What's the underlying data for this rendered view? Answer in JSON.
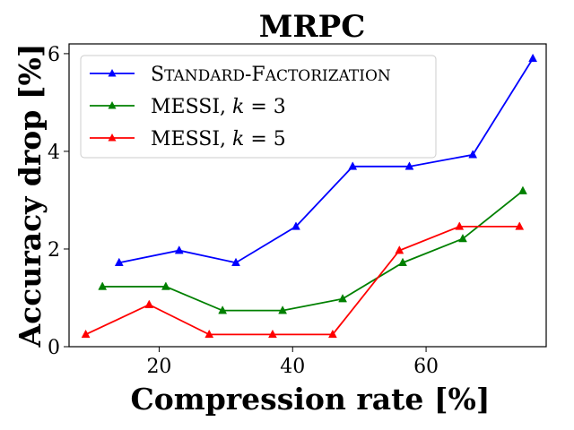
{
  "chart_data": {
    "type": "line",
    "title": "MRPC",
    "xlabel": "Compression rate [%]",
    "ylabel": "Accuracy drop [%]",
    "xlim": [
      6.5,
      78
    ],
    "ylim": [
      0,
      6.2
    ],
    "xticks": [
      20,
      40,
      60
    ],
    "yticks": [
      0,
      2,
      4,
      6
    ],
    "xtick_labels": [
      "20",
      "40",
      "60"
    ],
    "ytick_labels": [
      "0",
      "2",
      "4",
      "6"
    ],
    "grid": false,
    "legend_position": "top-left",
    "series": [
      {
        "name": "Standard-Factorization",
        "legend_label": "Standard-Factorization",
        "color": "#0000ff",
        "marker": "triangle-up",
        "x": [
          14,
          23,
          31.5,
          40.5,
          49,
          57.5,
          67,
          76
        ],
        "y": [
          1.72,
          1.97,
          1.72,
          2.46,
          3.69,
          3.69,
          3.93,
          5.9
        ]
      },
      {
        "name": "MESSI, k=3",
        "legend_label": "MESSI, ",
        "legend_math": "k = 3",
        "color": "#008000",
        "marker": "triangle-up",
        "x": [
          11.5,
          21,
          29.5,
          38.5,
          47.5,
          56.5,
          65.5,
          74.5
        ],
        "y": [
          1.23,
          1.23,
          0.74,
          0.74,
          0.98,
          1.72,
          2.21,
          3.19
        ]
      },
      {
        "name": "MESSI, k=5",
        "legend_label": "MESSI, ",
        "legend_math": "k = 5",
        "color": "#ff0000",
        "marker": "triangle-up",
        "x": [
          9,
          18.5,
          27.5,
          37,
          46,
          56,
          65,
          74
        ],
        "y": [
          0.25,
          0.86,
          0.25,
          0.25,
          0.25,
          1.97,
          2.46,
          2.46
        ]
      }
    ]
  }
}
